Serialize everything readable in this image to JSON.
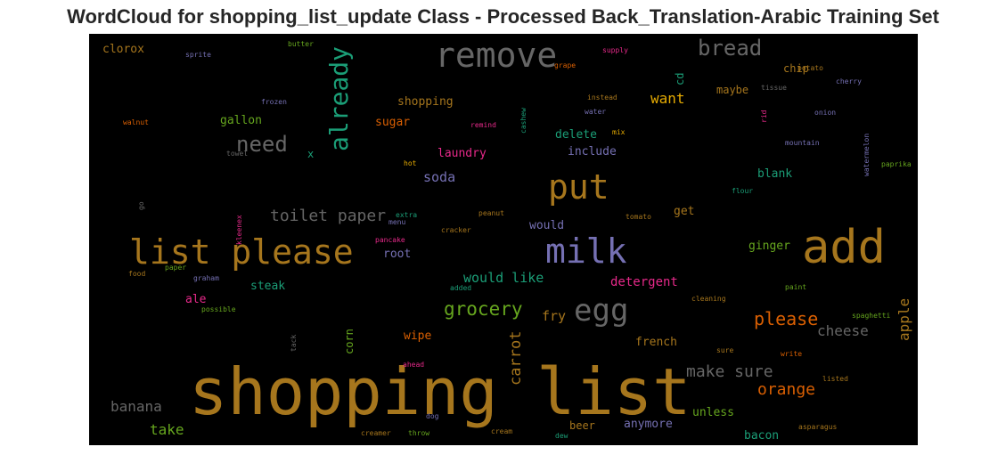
{
  "chart_data": {
    "type": "wordcloud",
    "title": "WordCloud for shopping_list_update Class - Processed Back_Translation-Arabic Training Set",
    "background": "#000000",
    "palette_note": "Dark2 colormap",
    "words": [
      {
        "text": "shopping list",
        "color": "#a6761d"
      },
      {
        "text": "add",
        "color": "#a6761d"
      },
      {
        "text": "milk",
        "color": "#7570b3"
      },
      {
        "text": "list please",
        "color": "#a6761d"
      },
      {
        "text": "remove",
        "color": "#666666"
      },
      {
        "text": "put",
        "color": "#a6761d"
      },
      {
        "text": "egg",
        "color": "#666666"
      },
      {
        "text": "already",
        "color": "#1b9e77"
      },
      {
        "text": "need",
        "color": "#666666"
      },
      {
        "text": "bread",
        "color": "#666666"
      },
      {
        "text": "grocery",
        "color": "#66a61e"
      },
      {
        "text": "toilet paper",
        "color": "#666666"
      },
      {
        "text": "make sure",
        "color": "#666666"
      },
      {
        "text": "please",
        "color": "#d95f02"
      },
      {
        "text": "orange",
        "color": "#d95f02"
      },
      {
        "text": "carrot",
        "color": "#a6761d"
      },
      {
        "text": "banana",
        "color": "#666666"
      },
      {
        "text": "cheese",
        "color": "#666666"
      },
      {
        "text": "apple",
        "color": "#a6761d"
      },
      {
        "text": "want",
        "color": "#e6ab02"
      },
      {
        "text": "take",
        "color": "#66a61e"
      },
      {
        "text": "would like",
        "color": "#1b9e77"
      },
      {
        "text": "detergent",
        "color": "#e7298a"
      },
      {
        "text": "soda",
        "color": "#7570b3"
      },
      {
        "text": "fry",
        "color": "#a6761d"
      },
      {
        "text": "french",
        "color": "#a6761d"
      },
      {
        "text": "anymore",
        "color": "#7570b3"
      },
      {
        "text": "unless",
        "color": "#66a61e"
      },
      {
        "text": "bacon",
        "color": "#1b9e77"
      },
      {
        "text": "beer",
        "color": "#a6761d"
      },
      {
        "text": "clorox",
        "color": "#a6761d"
      },
      {
        "text": "shopping",
        "color": "#a6761d"
      },
      {
        "text": "sugar",
        "color": "#d95f02"
      },
      {
        "text": "gallon",
        "color": "#66a61e"
      },
      {
        "text": "delete",
        "color": "#1b9e77"
      },
      {
        "text": "include",
        "color": "#7570b3"
      },
      {
        "text": "laundry",
        "color": "#e7298a"
      },
      {
        "text": "maybe",
        "color": "#a6761d"
      },
      {
        "text": "chip",
        "color": "#a6761d"
      },
      {
        "text": "blank",
        "color": "#1b9e77"
      },
      {
        "text": "ginger",
        "color": "#66a61e"
      },
      {
        "text": "get",
        "color": "#a6761d"
      },
      {
        "text": "would",
        "color": "#7570b3"
      },
      {
        "text": "root",
        "color": "#7570b3"
      },
      {
        "text": "steak",
        "color": "#1b9e77"
      },
      {
        "text": "ale",
        "color": "#e7298a"
      },
      {
        "text": "wipe",
        "color": "#d95f02"
      },
      {
        "text": "corn",
        "color": "#66a61e"
      },
      {
        "text": "cd",
        "color": "#1b9e77"
      },
      {
        "text": "x",
        "color": "#1b9e77"
      },
      {
        "text": "butter",
        "color": "#66a61e"
      },
      {
        "text": "sprite",
        "color": "#7570b3"
      },
      {
        "text": "supply",
        "color": "#e7298a"
      },
      {
        "text": "grape",
        "color": "#d95f02"
      },
      {
        "text": "potato",
        "color": "#a6761d"
      },
      {
        "text": "cherry",
        "color": "#7570b3"
      },
      {
        "text": "tissue",
        "color": "#666666"
      },
      {
        "text": "instead",
        "color": "#a6761d"
      },
      {
        "text": "frozen",
        "color": "#7570b3"
      },
      {
        "text": "water",
        "color": "#7570b3"
      },
      {
        "text": "onion",
        "color": "#7570b3"
      },
      {
        "text": "rid",
        "color": "#e7298a"
      },
      {
        "text": "walnut",
        "color": "#d95f02"
      },
      {
        "text": "remind",
        "color": "#e7298a"
      },
      {
        "text": "cashew",
        "color": "#1b9e77"
      },
      {
        "text": "mix",
        "color": "#e6ab02"
      },
      {
        "text": "mountain",
        "color": "#7570b3"
      },
      {
        "text": "watermelon",
        "color": "#7570b3"
      },
      {
        "text": "paprika",
        "color": "#66a61e"
      },
      {
        "text": "towel",
        "color": "#666666"
      },
      {
        "text": "hot",
        "color": "#e6ab02"
      },
      {
        "text": "flour",
        "color": "#1b9e77"
      },
      {
        "text": "go",
        "color": "#666666"
      },
      {
        "text": "kleenex",
        "color": "#e7298a"
      },
      {
        "text": "extra",
        "color": "#1b9e77"
      },
      {
        "text": "menu",
        "color": "#7570b3"
      },
      {
        "text": "peanut",
        "color": "#a6761d"
      },
      {
        "text": "tomato",
        "color": "#a6761d"
      },
      {
        "text": "cracker",
        "color": "#a6761d"
      },
      {
        "text": "pancake",
        "color": "#e7298a"
      },
      {
        "text": "paper",
        "color": "#66a61e"
      },
      {
        "text": "food",
        "color": "#a6761d"
      },
      {
        "text": "graham",
        "color": "#7570b3"
      },
      {
        "text": "added",
        "color": "#1b9e77"
      },
      {
        "text": "possible",
        "color": "#66a61e"
      },
      {
        "text": "cleaning",
        "color": "#a6761d"
      },
      {
        "text": "paint",
        "color": "#66a61e"
      },
      {
        "text": "spaghetti",
        "color": "#66a61e"
      },
      {
        "text": "tack",
        "color": "#666666"
      },
      {
        "text": "sure",
        "color": "#a6761d"
      },
      {
        "text": "write",
        "color": "#d95f02"
      },
      {
        "text": "ahead",
        "color": "#e7298a"
      },
      {
        "text": "listed",
        "color": "#a6761d"
      },
      {
        "text": "dog",
        "color": "#7570b3"
      },
      {
        "text": "creamer",
        "color": "#a6761d"
      },
      {
        "text": "throw",
        "color": "#66a61e"
      },
      {
        "text": "cream",
        "color": "#a6761d"
      },
      {
        "text": "dew",
        "color": "#1b9e77"
      },
      {
        "text": "asparagus",
        "color": "#a6761d"
      }
    ]
  }
}
